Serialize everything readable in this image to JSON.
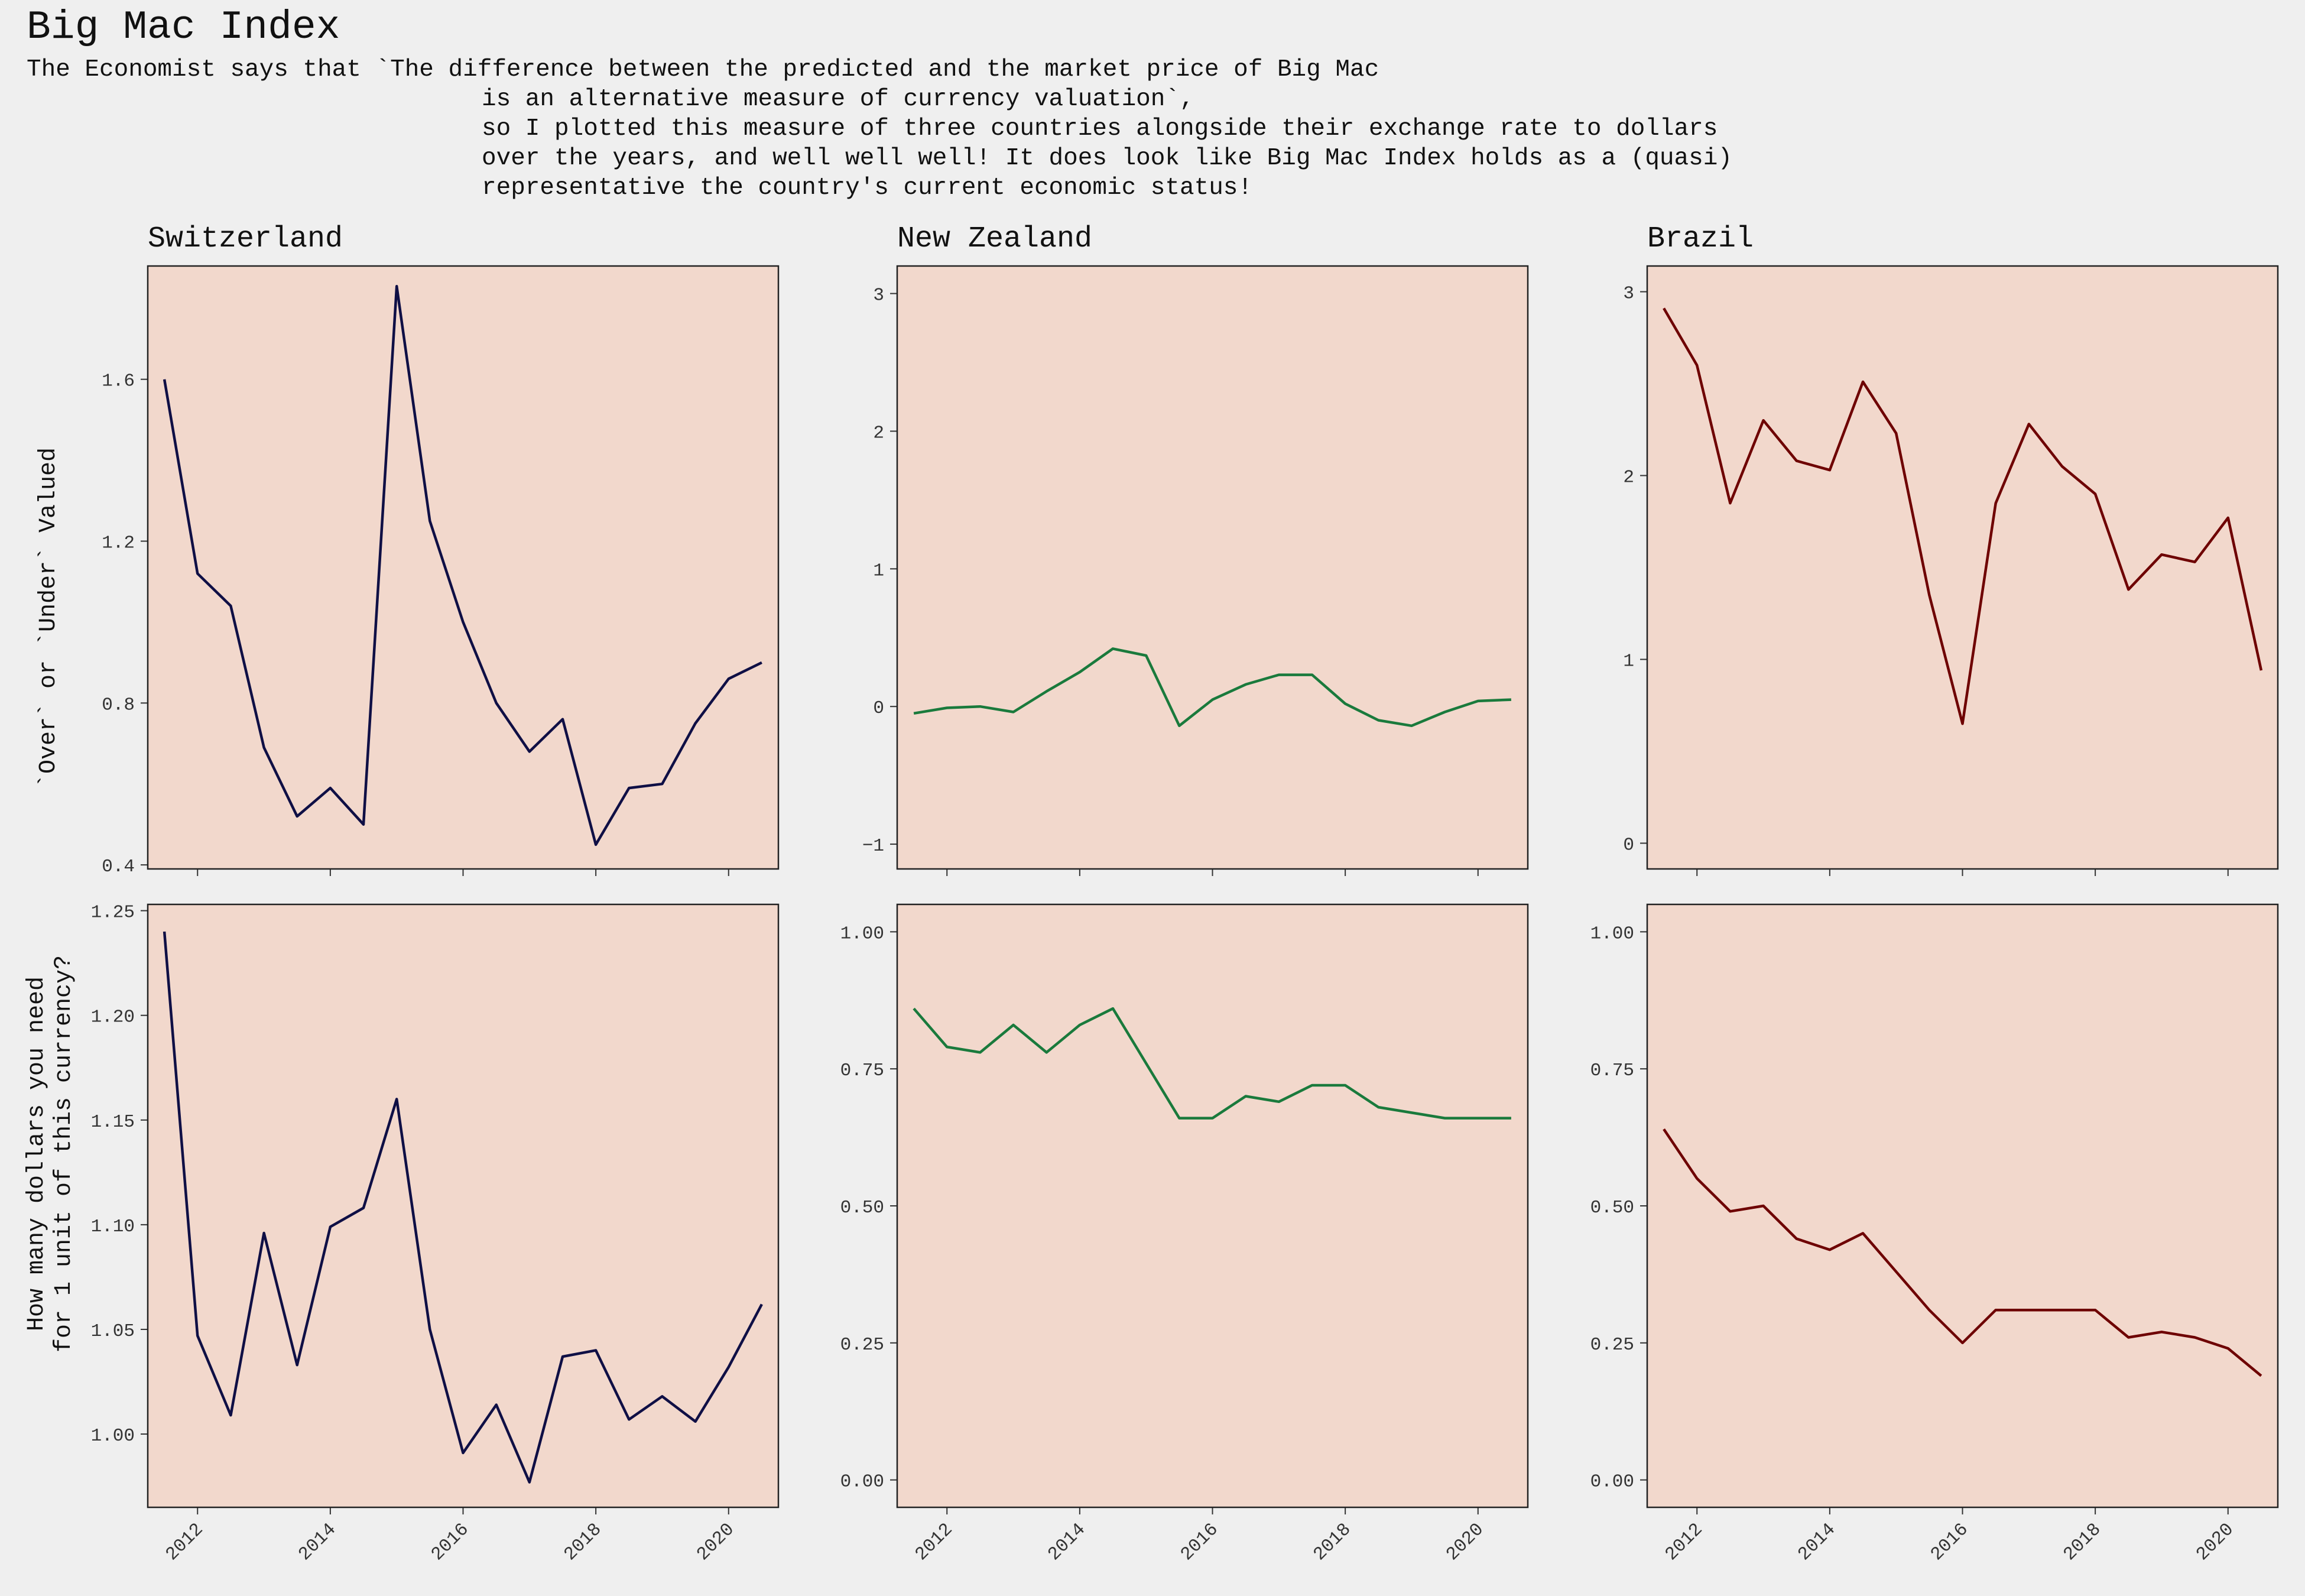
{
  "title": "Big Mac Index",
  "subtitle_lines": [
    "The Economist says that `The difference between the predicted and the market price of Big Mac",
    "is an alternative measure of currency valuation`,",
    "so I plotted this measure of three countries alongside their exchange rate to dollars",
    "over the years, and well well well! It does look like Big Mac Index holds as a (quasi)",
    "representative the country's current economic status!"
  ],
  "row_labels": {
    "top": [
      "`Over` or `Under` Valued"
    ],
    "bottom": [
      "How many dollars you need",
      "for 1 unit of this currency?"
    ]
  },
  "colors": {
    "background": "#efefef",
    "panel": "#f2d8cc",
    "switzerland": "#0f0f45",
    "new_zealand": "#1a7a3c",
    "brazil": "#6e0000"
  },
  "chart_data": [
    {
      "type": "line",
      "panel": "Switzerland-valuation",
      "title": "Switzerland",
      "xlabel": "",
      "ylabel": "`Over` or `Under` Valued",
      "xlim": [
        2011.25,
        2020.75
      ],
      "ylim": [
        0.39,
        1.88
      ],
      "xticks": [
        2012,
        2014,
        2016,
        2018,
        2020
      ],
      "xtick_labels": [
        "2012",
        "2014",
        "2016",
        "2018",
        "2020"
      ],
      "yticks": [
        0.4,
        0.8,
        1.2,
        1.6
      ],
      "ytick_labels": [
        "0.4",
        "0.8",
        "1.2",
        "1.6"
      ],
      "color": "#0f0f45",
      "x": [
        2011.5,
        2012,
        2012.5,
        2013,
        2013.5,
        2014,
        2014.5,
        2015,
        2015.5,
        2016,
        2016.5,
        2017,
        2017.5,
        2018,
        2018.5,
        2019,
        2019.5,
        2020,
        2020.5
      ],
      "y": [
        1.6,
        1.12,
        1.04,
        0.69,
        0.52,
        0.59,
        0.5,
        1.83,
        1.25,
        1.0,
        0.8,
        0.68,
        0.76,
        0.45,
        0.59,
        0.6,
        0.75,
        0.86,
        0.9
      ]
    },
    {
      "type": "line",
      "panel": "NewZealand-valuation",
      "title": "New Zealand",
      "xlabel": "",
      "ylabel": "",
      "xlim": [
        2011.25,
        2020.75
      ],
      "ylim": [
        -1.18,
        3.2
      ],
      "xticks": [
        2012,
        2014,
        2016,
        2018,
        2020
      ],
      "xtick_labels": [
        "2012",
        "2014",
        "2016",
        "2018",
        "2020"
      ],
      "yticks": [
        -1,
        0,
        1,
        2,
        3
      ],
      "ytick_labels": [
        "−1",
        "0",
        "1",
        "2",
        "3"
      ],
      "color": "#1a7a3c",
      "x": [
        2011.5,
        2012,
        2012.5,
        2013,
        2013.5,
        2014,
        2014.5,
        2015,
        2015.5,
        2016,
        2016.5,
        2017,
        2017.5,
        2018,
        2018.5,
        2019,
        2019.5,
        2020,
        2020.5
      ],
      "y": [
        -0.05,
        -0.01,
        0.0,
        -0.04,
        0.11,
        0.25,
        0.42,
        0.37,
        -0.14,
        0.05,
        0.16,
        0.23,
        0.23,
        0.02,
        -0.1,
        -0.14,
        -0.04,
        0.04,
        0.05
      ]
    },
    {
      "type": "line",
      "panel": "Brazil-valuation",
      "title": "Brazil",
      "xlabel": "",
      "ylabel": "",
      "xlim": [
        2011.25,
        2020.75
      ],
      "ylim": [
        -0.14,
        3.14
      ],
      "xticks": [
        2012,
        2014,
        2016,
        2018,
        2020
      ],
      "xtick_labels": [
        "2012",
        "2014",
        "2016",
        "2018",
        "2020"
      ],
      "yticks": [
        0,
        1,
        2,
        3
      ],
      "ytick_labels": [
        "0",
        "1",
        "2",
        "3"
      ],
      "color": "#6e0000",
      "x": [
        2011.5,
        2012,
        2012.5,
        2013,
        2013.5,
        2014,
        2014.5,
        2015,
        2015.5,
        2016,
        2016.5,
        2017,
        2017.5,
        2018,
        2018.5,
        2019,
        2019.5,
        2020,
        2020.5
      ],
      "y": [
        2.91,
        2.6,
        1.85,
        2.3,
        2.08,
        2.03,
        2.51,
        2.23,
        1.35,
        0.65,
        1.85,
        2.28,
        2.05,
        1.9,
        1.38,
        1.57,
        1.53,
        1.77,
        0.94
      ]
    },
    {
      "type": "line",
      "panel": "Switzerland-exchange",
      "title": "",
      "xlabel": "",
      "ylabel": "How many dollars you need for 1 unit of this currency?",
      "xlim": [
        2011.25,
        2020.75
      ],
      "ylim": [
        0.965,
        1.253
      ],
      "xticks": [
        2012,
        2014,
        2016,
        2018,
        2020
      ],
      "xtick_labels": [
        "2012",
        "2014",
        "2016",
        "2018",
        "2020"
      ],
      "yticks": [
        1.0,
        1.05,
        1.1,
        1.15,
        1.2,
        1.25
      ],
      "ytick_labels": [
        "1.00",
        "1.05",
        "1.10",
        "1.15",
        "1.20",
        "1.25"
      ],
      "color": "#0f0f45",
      "x": [
        2011.5,
        2012,
        2012.5,
        2013,
        2013.5,
        2014,
        2014.5,
        2015,
        2015.5,
        2016,
        2016.5,
        2017,
        2017.5,
        2018,
        2018.5,
        2019,
        2019.5,
        2020,
        2020.5
      ],
      "y": [
        1.24,
        1.047,
        1.009,
        1.096,
        1.033,
        1.099,
        1.108,
        1.16,
        1.05,
        0.991,
        1.014,
        0.977,
        1.037,
        1.04,
        1.007,
        1.018,
        1.006,
        1.032,
        1.062
      ]
    },
    {
      "type": "line",
      "panel": "NewZealand-exchange",
      "title": "",
      "xlabel": "",
      "ylabel": "",
      "xlim": [
        2011.25,
        2020.75
      ],
      "ylim": [
        -0.05,
        1.05
      ],
      "xticks": [
        2012,
        2014,
        2016,
        2018,
        2020
      ],
      "xtick_labels": [
        "2012",
        "2014",
        "2016",
        "2018",
        "2020"
      ],
      "yticks": [
        0.0,
        0.25,
        0.5,
        0.75,
        1.0
      ],
      "ytick_labels": [
        "0.00",
        "0.25",
        "0.50",
        "0.75",
        "1.00"
      ],
      "color": "#1a7a3c",
      "x": [
        2011.5,
        2012,
        2012.5,
        2013,
        2013.5,
        2014,
        2014.5,
        2015,
        2015.5,
        2016,
        2016.5,
        2017,
        2017.5,
        2018,
        2018.5,
        2019,
        2019.5,
        2020,
        2020.5
      ],
      "y": [
        0.86,
        0.79,
        0.78,
        0.83,
        0.78,
        0.83,
        0.86,
        0.76,
        0.66,
        0.66,
        0.7,
        0.69,
        0.72,
        0.72,
        0.68,
        0.67,
        0.66,
        0.66,
        0.66
      ]
    },
    {
      "type": "line",
      "panel": "Brazil-exchange",
      "title": "",
      "xlabel": "",
      "ylabel": "",
      "xlim": [
        2011.25,
        2020.75
      ],
      "ylim": [
        -0.05,
        1.05
      ],
      "xticks": [
        2012,
        2014,
        2016,
        2018,
        2020
      ],
      "xtick_labels": [
        "2012",
        "2014",
        "2016",
        "2018",
        "2020"
      ],
      "yticks": [
        0.0,
        0.25,
        0.5,
        0.75,
        1.0
      ],
      "ytick_labels": [
        "0.00",
        "0.25",
        "0.50",
        "0.75",
        "1.00"
      ],
      "color": "#6e0000",
      "x": [
        2011.5,
        2012,
        2012.5,
        2013,
        2013.5,
        2014,
        2014.5,
        2015,
        2015.5,
        2016,
        2016.5,
        2017,
        2017.5,
        2018,
        2018.5,
        2019,
        2019.5,
        2020,
        2020.5
      ],
      "y": [
        0.64,
        0.55,
        0.49,
        0.5,
        0.44,
        0.42,
        0.45,
        0.38,
        0.31,
        0.25,
        0.31,
        0.31,
        0.31,
        0.31,
        0.26,
        0.27,
        0.26,
        0.24,
        0.19
      ]
    }
  ]
}
